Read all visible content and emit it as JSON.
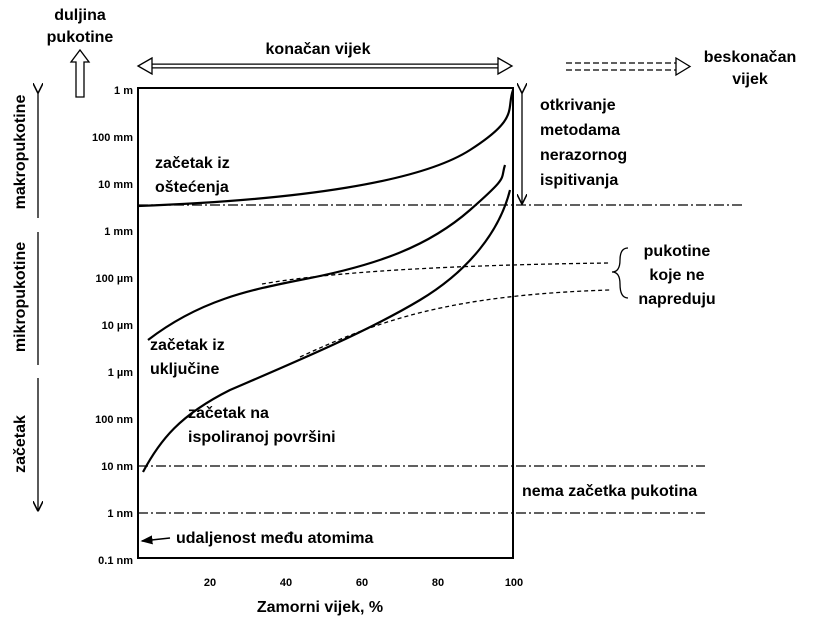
{
  "y_axis": {
    "title": [
      "duljina",
      "pukotine"
    ],
    "ticks": [
      "1 m",
      "100 mm",
      "10 mm",
      "1 mm",
      "100 µm",
      "10 µm",
      "1 µm",
      "100 nm",
      "10 nm",
      "1 nm",
      "0.1 nm"
    ],
    "ranges": [
      "makropukotine",
      "mikropukotine",
      "začetak"
    ]
  },
  "x_axis": {
    "title": "Zamorni vijek, %",
    "ticks": [
      "20",
      "40",
      "60",
      "80",
      "100"
    ]
  },
  "top": {
    "finite_life": "konačan vijek",
    "infinite_life": [
      "beskonačan",
      "vijek"
    ]
  },
  "curves": [
    [
      "začetak iz",
      "oštećenja"
    ],
    [
      "začetak iz",
      "uključine"
    ],
    [
      "začetak na",
      "ispoliranoj površini"
    ]
  ],
  "annotations": {
    "ndt": [
      "otkrivanje",
      "metodama",
      "nerazornog",
      "ispitivanja"
    ],
    "non_propagating": [
      "pukotine",
      "koje ne",
      "napreduju"
    ],
    "no_initiation": "nema začetka pukotina",
    "atomic": "udaljenost među atomima"
  }
}
